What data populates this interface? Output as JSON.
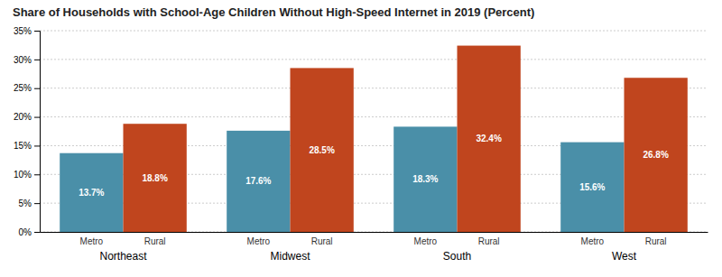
{
  "chart_data": {
    "type": "bar",
    "title": "Share of Households with School-Age Children Without High-Speed Internet in 2019 (Percent)",
    "categories": [
      "Northeast",
      "Midwest",
      "South",
      "West"
    ],
    "series": [
      {
        "name": "Metro",
        "color": "#4a8fa8",
        "values": [
          13.7,
          17.6,
          18.3,
          15.6
        ],
        "value_labels": [
          "13.7%",
          "17.6%",
          "18.3%",
          "15.6%"
        ]
      },
      {
        "name": "Rural",
        "color": "#c0451e",
        "values": [
          18.8,
          28.5,
          32.4,
          26.8
        ],
        "value_labels": [
          "18.8%",
          "28.5%",
          "32.4%",
          "26.8%"
        ]
      }
    ],
    "ylim": [
      0,
      35
    ],
    "yticks": [
      {
        "value": 0,
        "label": "0%"
      },
      {
        "value": 5,
        "label": "5%"
      },
      {
        "value": 10,
        "label": "10%"
      },
      {
        "value": 15,
        "label": "15%"
      },
      {
        "value": 20,
        "label": "20%"
      },
      {
        "value": 25,
        "label": "25%"
      },
      {
        "value": 30,
        "label": "30%"
      },
      {
        "value": 35,
        "label": "35%"
      }
    ],
    "grid": true,
    "data_labels": true
  }
}
